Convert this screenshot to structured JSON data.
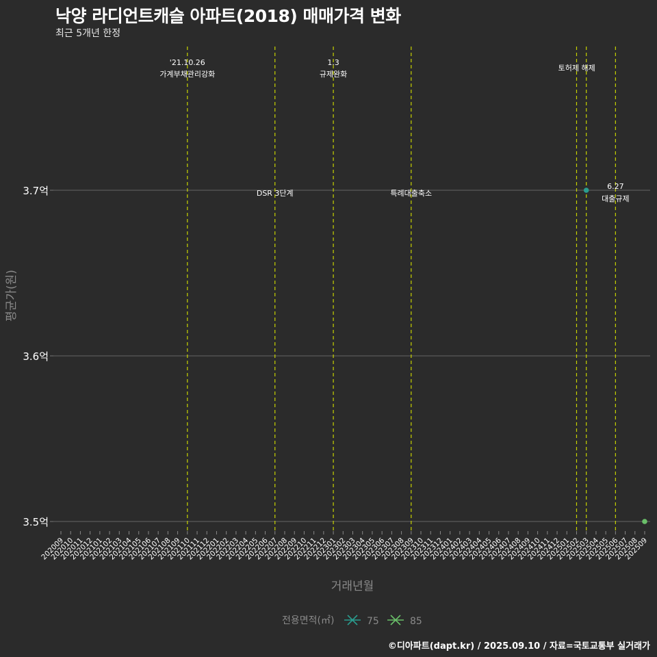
{
  "header": {
    "title": "낙양 라디언트캐슬 아파트(2018) 매매가격 변화",
    "subtitle": "최근 5개년 한정"
  },
  "footer": {
    "credit": "©디아파트(dapt.kr) / 2025.09.10 / 자료=국토교통부 실거래가"
  },
  "colors": {
    "background": "#2b2b2b",
    "grid": "#5a5a5a",
    "event_line": "#c8d400",
    "series_75": "#2a9d8f",
    "series_85": "#6abf69"
  },
  "chart_data": {
    "type": "scatter",
    "title": "낙양 라디언트캐슬 아파트(2018) 매매가격 변화",
    "subtitle": "최근 5개년 한정",
    "xlabel": "거래년월",
    "ylabel": "평균가(원)",
    "ylim": [
      3.49,
      3.72
    ],
    "yticks": [
      3.5,
      3.6,
      3.7
    ],
    "ytick_labels": [
      "3.5억",
      "3.6억",
      "3.7억"
    ],
    "grid": true,
    "legend": {
      "title": "전용면적(㎡)",
      "position": "bottom",
      "entries": [
        "75",
        "85"
      ]
    },
    "categories": [
      "202009",
      "202010",
      "202011",
      "202012",
      "202101",
      "202102",
      "202103",
      "202104",
      "202105",
      "202106",
      "202107",
      "202108",
      "202109",
      "202110",
      "202111",
      "202112",
      "202201",
      "202202",
      "202203",
      "202204",
      "202205",
      "202206",
      "202207",
      "202208",
      "202209",
      "202210",
      "202211",
      "202212",
      "202301",
      "202302",
      "202303",
      "202304",
      "202305",
      "202306",
      "202307",
      "202308",
      "202309",
      "202310",
      "202311",
      "202312",
      "202401",
      "202402",
      "202403",
      "202404",
      "202405",
      "202406",
      "202407",
      "202408",
      "202409",
      "202410",
      "202411",
      "202412",
      "202501",
      "202502",
      "202503",
      "202504",
      "202505",
      "202506",
      "202507",
      "202508",
      "202509"
    ],
    "series": [
      {
        "name": "75",
        "points": [
          {
            "x": "202503",
            "y": 3.7
          }
        ]
      },
      {
        "name": "85",
        "points": [
          {
            "x": "202509",
            "y": 3.5
          }
        ]
      }
    ],
    "annotations": [
      {
        "x": "202110",
        "label_line1": "'21.10.26",
        "label_line2": "가계부채관리강화",
        "position": "top"
      },
      {
        "x": "202207",
        "label_line1": "DSR 3단계",
        "label_line2": "",
        "position": "mid"
      },
      {
        "x": "202301",
        "label_line1": "1.3",
        "label_line2": "규제완화",
        "position": "top"
      },
      {
        "x": "202309",
        "label_line1": "특례대출축소",
        "label_line2": "",
        "position": "mid"
      },
      {
        "x": "202502",
        "label_line1": "",
        "label_line2": "",
        "position": "none"
      },
      {
        "x": "202503",
        "label_line1": "토허제 해제",
        "label_line2": "",
        "position": "top"
      },
      {
        "x": "202506",
        "label_line1": "6.27",
        "label_line2": "대출규제",
        "position": "mid"
      }
    ]
  }
}
